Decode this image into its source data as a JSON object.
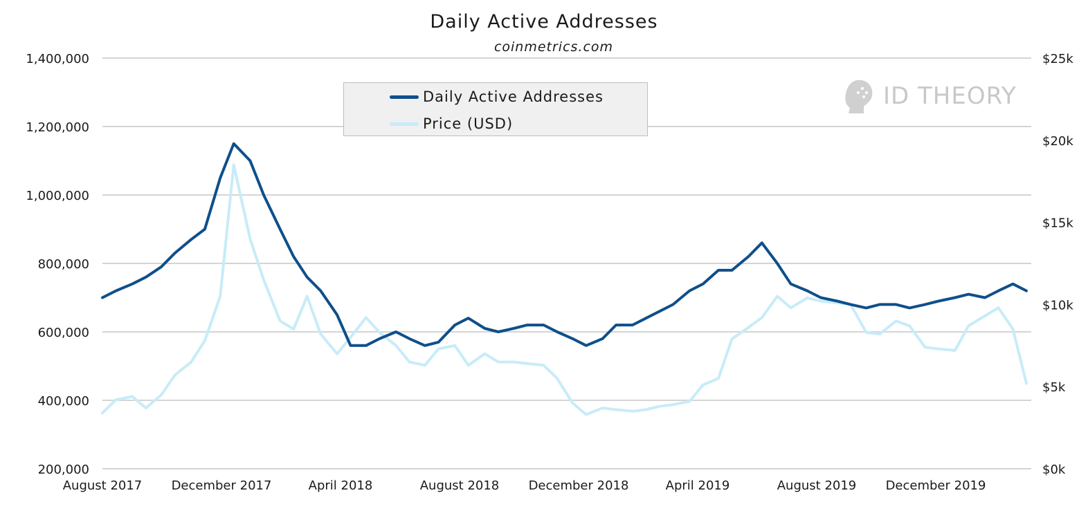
{
  "chart_data": {
    "type": "line",
    "title": "Daily Active Addresses",
    "subtitle": "coinmetrics.com",
    "x_ticks": [
      "August 2017",
      "December 2017",
      "April 2018",
      "August 2018",
      "December 2018",
      "April 2019",
      "August 2019",
      "December 2019"
    ],
    "y_left": {
      "ylim": [
        200000,
        1400000
      ],
      "ticks": [
        "200,000",
        "400,000",
        "600,000",
        "800,000",
        "1,000,000",
        "1,200,000",
        "1,400,000"
      ]
    },
    "y_right": {
      "ylim": [
        0,
        25000
      ],
      "ticks": [
        "$0k",
        "$5k",
        "$10k",
        "$15k",
        "$20k",
        "$25k"
      ]
    },
    "grid": true,
    "legend_position": "top-center",
    "series": [
      {
        "name": "Daily Active Addresses",
        "axis": "left",
        "color": "#0e4f8b",
        "x": [
          "2017-08-01",
          "2017-08-15",
          "2017-09-01",
          "2017-09-15",
          "2017-10-01",
          "2017-10-15",
          "2017-11-01",
          "2017-11-15",
          "2017-12-01",
          "2017-12-15",
          "2018-01-01",
          "2018-01-15",
          "2018-02-01",
          "2018-02-15",
          "2018-03-01",
          "2018-03-15",
          "2018-04-01",
          "2018-04-15",
          "2018-05-01",
          "2018-05-15",
          "2018-06-01",
          "2018-06-15",
          "2018-07-01",
          "2018-07-15",
          "2018-08-01",
          "2018-08-15",
          "2018-09-01",
          "2018-09-15",
          "2018-10-01",
          "2018-10-15",
          "2018-11-01",
          "2018-11-15",
          "2018-12-01",
          "2018-12-15",
          "2019-01-01",
          "2019-01-15",
          "2019-02-01",
          "2019-02-15",
          "2019-03-01",
          "2019-03-15",
          "2019-04-01",
          "2019-04-15",
          "2019-05-01",
          "2019-05-15",
          "2019-06-01",
          "2019-06-15",
          "2019-07-01",
          "2019-07-15",
          "2019-08-01",
          "2019-08-15",
          "2019-09-01",
          "2019-09-15",
          "2019-10-01",
          "2019-10-15",
          "2019-11-01",
          "2019-11-15",
          "2019-12-01",
          "2019-12-15",
          "2020-01-01",
          "2020-01-15",
          "2020-02-01",
          "2020-02-15",
          "2020-03-01",
          "2020-03-15"
        ],
        "values": [
          700000,
          720000,
          740000,
          760000,
          790000,
          830000,
          870000,
          900000,
          1050000,
          1150000,
          1100000,
          1000000,
          900000,
          820000,
          760000,
          720000,
          650000,
          560000,
          560000,
          580000,
          600000,
          580000,
          560000,
          570000,
          620000,
          640000,
          610000,
          600000,
          610000,
          620000,
          620000,
          600000,
          580000,
          560000,
          580000,
          620000,
          620000,
          640000,
          660000,
          680000,
          720000,
          740000,
          780000,
          780000,
          820000,
          860000,
          800000,
          740000,
          720000,
          700000,
          690000,
          680000,
          670000,
          680000,
          680000,
          670000,
          680000,
          690000,
          700000,
          710000,
          700000,
          720000,
          740000,
          720000
        ]
      },
      {
        "name": "Price (USD)",
        "axis": "right",
        "color": "#c8ecf8",
        "x": [
          "2017-08-01",
          "2017-08-15",
          "2017-09-01",
          "2017-09-15",
          "2017-10-01",
          "2017-10-15",
          "2017-11-01",
          "2017-11-15",
          "2017-12-01",
          "2017-12-15",
          "2018-01-01",
          "2018-01-15",
          "2018-02-01",
          "2018-02-15",
          "2018-03-01",
          "2018-03-15",
          "2018-04-01",
          "2018-04-15",
          "2018-05-01",
          "2018-05-15",
          "2018-06-01",
          "2018-06-15",
          "2018-07-01",
          "2018-07-15",
          "2018-08-01",
          "2018-08-15",
          "2018-09-01",
          "2018-09-15",
          "2018-10-01",
          "2018-10-15",
          "2018-11-01",
          "2018-11-15",
          "2018-12-01",
          "2018-12-15",
          "2019-01-01",
          "2019-01-15",
          "2019-02-01",
          "2019-02-15",
          "2019-03-01",
          "2019-03-15",
          "2019-04-01",
          "2019-04-15",
          "2019-05-01",
          "2019-05-15",
          "2019-06-01",
          "2019-06-15",
          "2019-07-01",
          "2019-07-15",
          "2019-08-01",
          "2019-08-15",
          "2019-09-01",
          "2019-09-15",
          "2019-10-01",
          "2019-10-15",
          "2019-11-01",
          "2019-11-15",
          "2019-12-01",
          "2019-12-15",
          "2020-01-01",
          "2020-01-15",
          "2020-02-01",
          "2020-02-15",
          "2020-03-01",
          "2020-03-15"
        ],
        "values": [
          3400,
          4200,
          4400,
          3700,
          4500,
          5700,
          6500,
          7800,
          10500,
          18500,
          14000,
          11500,
          9000,
          8500,
          10500,
          8200,
          7000,
          8000,
          9200,
          8300,
          7500,
          6500,
          6300,
          7300,
          7500,
          6300,
          7000,
          6500,
          6500,
          6400,
          6300,
          5500,
          4000,
          3300,
          3700,
          3600,
          3500,
          3600,
          3800,
          3900,
          4100,
          5100,
          5500,
          7900,
          8600,
          9200,
          10500,
          9800,
          10400,
          10200,
          10100,
          10000,
          8300,
          8200,
          9000,
          8700,
          7400,
          7300,
          7200,
          8700,
          9300,
          9800,
          8500,
          5200
        ]
      }
    ]
  }
}
